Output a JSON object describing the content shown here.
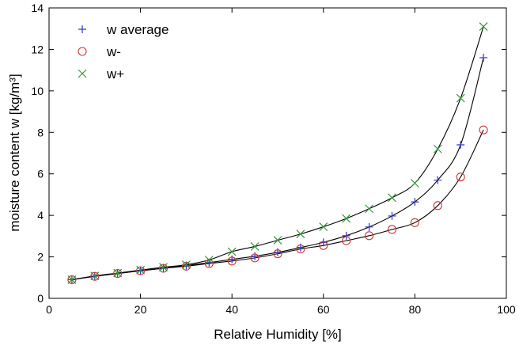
{
  "chart_data": {
    "type": "scatter",
    "title": "",
    "xlabel": "Relative Humidity [%]",
    "ylabel": "moisture content w [kg/m³]",
    "xlim": [
      0,
      100
    ],
    "ylim": [
      0,
      14
    ],
    "x_ticks": [
      "0",
      "20",
      "40",
      "60",
      "80",
      "100"
    ],
    "y_ticks": [
      "0",
      "2",
      "4",
      "6",
      "8",
      "10",
      "12",
      "14"
    ],
    "grid": false,
    "legend_position": "top-left",
    "x": [
      5,
      10,
      15,
      20,
      25,
      30,
      35,
      40,
      45,
      50,
      55,
      60,
      65,
      70,
      75,
      80,
      85,
      90,
      95
    ],
    "series": [
      {
        "name": "w average",
        "marker": "plus",
        "color": "#3333cc",
        "values": [
          0.9,
          1.07,
          1.2,
          1.33,
          1.45,
          1.58,
          1.72,
          1.88,
          2.03,
          2.22,
          2.45,
          2.7,
          3.02,
          3.44,
          3.97,
          4.65,
          5.7,
          7.4,
          11.6
        ]
      },
      {
        "name": "w-",
        "marker": "circle",
        "color": "#cc3333",
        "values": [
          0.9,
          1.06,
          1.2,
          1.33,
          1.45,
          1.55,
          1.68,
          1.8,
          1.95,
          2.15,
          2.38,
          2.55,
          2.78,
          3.02,
          3.32,
          3.65,
          4.47,
          5.85,
          8.12
        ]
      },
      {
        "name": "w+",
        "marker": "cross",
        "color": "#339933",
        "values": [
          0.9,
          1.08,
          1.22,
          1.36,
          1.5,
          1.62,
          1.85,
          2.25,
          2.5,
          2.8,
          3.1,
          3.45,
          3.85,
          4.32,
          4.85,
          5.55,
          7.2,
          9.65,
          13.1
        ]
      }
    ]
  }
}
